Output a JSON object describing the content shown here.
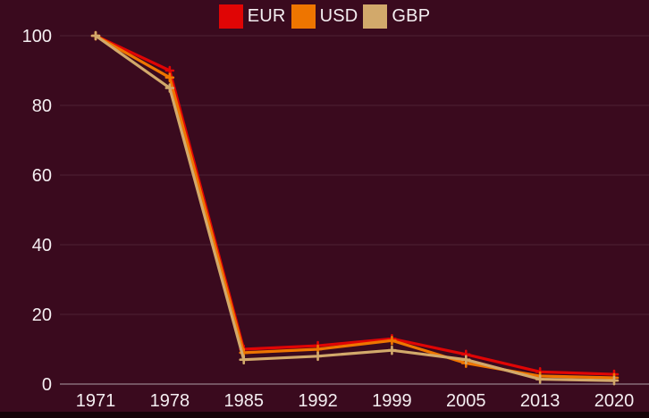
{
  "page": {
    "background_color": "#3a0a1e",
    "bottom_bar_color": "#150309",
    "text_color": "#f4eef1"
  },
  "legend": {
    "position": "top-center",
    "items": [
      {
        "label": "EUR",
        "color": "#e00505",
        "swatch": "red-square-icon"
      },
      {
        "label": "USD",
        "color": "#ee7500",
        "swatch": "orange-square-icon"
      },
      {
        "label": "GBP",
        "color": "#d2a96b",
        "swatch": "tan-square-icon"
      }
    ]
  },
  "chart_data": {
    "type": "line",
    "title": "",
    "xlabel": "",
    "ylabel": "",
    "categories": [
      "1971",
      "1978",
      "1985",
      "1992",
      "1999",
      "2005",
      "2013",
      "2020"
    ],
    "series": [
      {
        "name": "EUR",
        "color": "#e00505",
        "values": [
          100,
          90,
          10,
          11,
          13,
          8.5,
          3.5,
          2.8
        ]
      },
      {
        "name": "USD",
        "color": "#ee7500",
        "values": [
          100,
          88,
          9,
          10,
          12.5,
          6,
          2.3,
          1.8
        ]
      },
      {
        "name": "GBP",
        "color": "#d2a96b",
        "values": [
          100,
          85,
          7,
          8,
          9.7,
          7,
          1.4,
          1
        ]
      }
    ],
    "ylim": [
      0,
      100
    ],
    "yticks": [
      0,
      20,
      40,
      60,
      80,
      100
    ],
    "grid": true,
    "gridline_color": "rgba(255,255,255,0.10)",
    "baseline_color": "rgba(255,255,255,0.40)",
    "marker_style": "plus",
    "legend_position": "top-center"
  }
}
